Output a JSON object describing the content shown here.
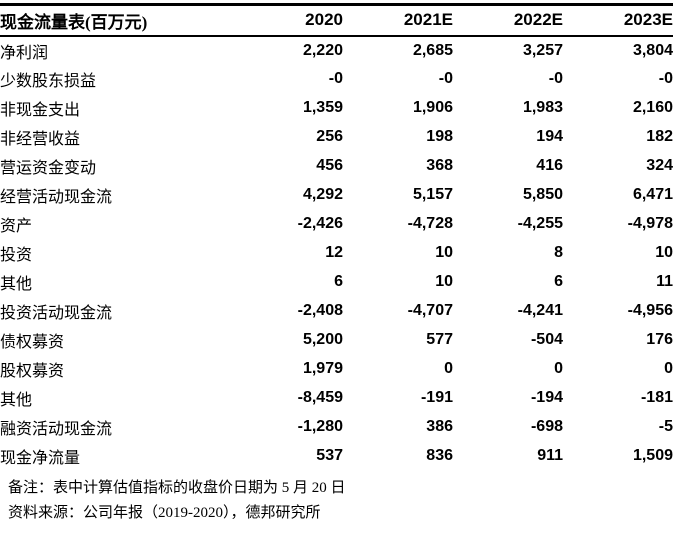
{
  "table": {
    "title": "现金流量表(百万元)",
    "columns": [
      "2020",
      "2021E",
      "2022E",
      "2023E"
    ],
    "rows": [
      {
        "label": "净利润",
        "values": [
          "2,220",
          "2,685",
          "3,257",
          "3,804"
        ]
      },
      {
        "label": "少数股东损益",
        "values": [
          "-0",
          "-0",
          "-0",
          "-0"
        ]
      },
      {
        "label": "非现金支出",
        "values": [
          "1,359",
          "1,906",
          "1,983",
          "2,160"
        ]
      },
      {
        "label": "非经营收益",
        "values": [
          "256",
          "198",
          "194",
          "182"
        ]
      },
      {
        "label": "营运资金变动",
        "values": [
          "456",
          "368",
          "416",
          "324"
        ]
      },
      {
        "label": "经营活动现金流",
        "values": [
          "4,292",
          "5,157",
          "5,850",
          "6,471"
        ]
      },
      {
        "label": "资产",
        "values": [
          "-2,426",
          "-4,728",
          "-4,255",
          "-4,978"
        ]
      },
      {
        "label": "投资",
        "values": [
          "12",
          "10",
          "8",
          "10"
        ]
      },
      {
        "label": "其他",
        "values": [
          "6",
          "10",
          "6",
          "11"
        ]
      },
      {
        "label": "投资活动现金流",
        "values": [
          "-2,408",
          "-4,707",
          "-4,241",
          "-4,956"
        ]
      },
      {
        "label": "债权募资",
        "values": [
          "5,200",
          "577",
          "-504",
          "176"
        ]
      },
      {
        "label": "股权募资",
        "values": [
          "1,979",
          "0",
          "0",
          "0"
        ]
      },
      {
        "label": "其他",
        "values": [
          "-8,459",
          "-191",
          "-194",
          "-181"
        ]
      },
      {
        "label": "融资活动现金流",
        "values": [
          "-1,280",
          "386",
          "-698",
          "-5"
        ]
      },
      {
        "label": "现金净流量",
        "values": [
          "537",
          "836",
          "911",
          "1,509"
        ]
      }
    ]
  },
  "footnotes": {
    "note": "备注：表中计算估值指标的收盘价日期为 5 月 20 日",
    "source": "资料来源：公司年报（2019-2020），德邦研究所"
  },
  "colors": {
    "text": "#000000",
    "background": "#ffffff",
    "border": "#000000"
  }
}
